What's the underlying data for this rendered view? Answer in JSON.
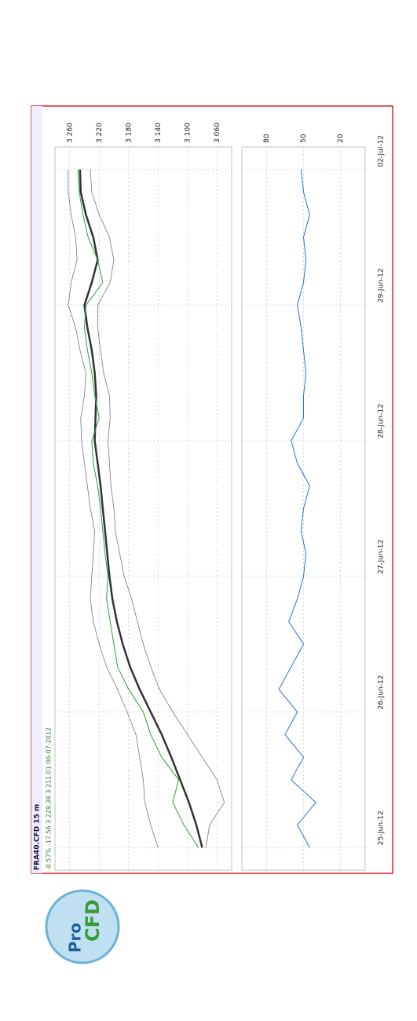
{
  "chart_data": [
    {
      "type": "line",
      "title": "FRA40.CFD 15 m",
      "subtitle": "-0.57%  -17.56  3 229.38  3 211.01  06-07-2012",
      "x": [
        0,
        2,
        4,
        6,
        8,
        10,
        12,
        14,
        16,
        18,
        20,
        22,
        24,
        26,
        28,
        30,
        32,
        34,
        36,
        38,
        40,
        42,
        44,
        46,
        48,
        50,
        52,
        54,
        56,
        58,
        60
      ],
      "xlim": [
        -2,
        62
      ],
      "xticks": [
        {
          "value": 0,
          "label": "25-Jun-12"
        },
        {
          "value": 12,
          "label": "26-Jun-12"
        },
        {
          "value": 24,
          "label": "27-Jun-12"
        },
        {
          "value": 36,
          "label": "28-Jun-12"
        },
        {
          "value": 48,
          "label": "29-Jun-12"
        },
        {
          "value": 60,
          "label": "02-Jul-12"
        }
      ],
      "ylim": [
        3040,
        3280
      ],
      "yticks": [
        {
          "value": 3060,
          "label": "3 060"
        },
        {
          "value": 3100,
          "label": "3 100"
        },
        {
          "value": 3140,
          "label": "3 140"
        },
        {
          "value": 3180,
          "label": "3 180"
        },
        {
          "value": 3220,
          "label": "3 220"
        },
        {
          "value": 3260,
          "label": "3 260"
        }
      ],
      "grid": true,
      "series": [
        {
          "color": "#333333",
          "width": 2.5,
          "values": [
            3080,
            3088,
            3098,
            3110,
            3122,
            3135,
            3150,
            3165,
            3178,
            3188,
            3196,
            3202,
            3206,
            3209,
            3212,
            3215,
            3218,
            3222,
            3226,
            3225,
            3224,
            3226,
            3230,
            3236,
            3240,
            3230,
            3222,
            3228,
            3238,
            3245,
            3246
          ]
        },
        {
          "color": "#777777",
          "width": 0.8,
          "values": [
            3140,
            3150,
            3158,
            3160,
            3165,
            3170,
            3182,
            3195,
            3210,
            3220,
            3228,
            3232,
            3230,
            3228,
            3226,
            3232,
            3236,
            3240,
            3244,
            3245,
            3240,
            3238,
            3246,
            3252,
            3262,
            3258,
            3250,
            3252,
            3258,
            3262,
            3262
          ]
        },
        {
          "color": "#777777",
          "width": 0.8,
          "values": [
            3075,
            3070,
            3050,
            3060,
            3080,
            3100,
            3120,
            3138,
            3150,
            3160,
            3168,
            3176,
            3186,
            3192,
            3198,
            3200,
            3204,
            3206,
            3208,
            3205,
            3206,
            3214,
            3218,
            3222,
            3222,
            3205,
            3200,
            3206,
            3220,
            3230,
            3232
          ]
        },
        {
          "color": "#2e9e3e",
          "width": 1,
          "values": [
            3085,
            3105,
            3120,
            3112,
            3135,
            3150,
            3160,
            3180,
            3195,
            3200,
            3205,
            3210,
            3208,
            3212,
            3215,
            3218,
            3222,
            3228,
            3230,
            3220,
            3226,
            3230,
            3236,
            3240,
            3238,
            3215,
            3222,
            3235,
            3242,
            3247,
            3249
          ]
        }
      ]
    },
    {
      "type": "line",
      "x": [
        0,
        2,
        4,
        6,
        8,
        10,
        12,
        14,
        16,
        18,
        20,
        22,
        24,
        26,
        28,
        30,
        32,
        34,
        36,
        38,
        40,
        42,
        44,
        46,
        48,
        50,
        52,
        54,
        56,
        58,
        60
      ],
      "xlim": [
        -2,
        62
      ],
      "ylim": [
        0,
        100
      ],
      "yticks": [
        20,
        50,
        80
      ],
      "grid": true,
      "series": [
        {
          "color": "#2a6fd6",
          "width": 1,
          "values": [
            45,
            55,
            40,
            60,
            50,
            65,
            55,
            70,
            60,
            50,
            62,
            55,
            50,
            48,
            52,
            50,
            45,
            55,
            60,
            50,
            50,
            48,
            50,
            52,
            55,
            50,
            48,
            50,
            45,
            50,
            52
          ]
        }
      ]
    }
  ],
  "logo": {
    "line1": "Pro",
    "line2": "CFD"
  }
}
